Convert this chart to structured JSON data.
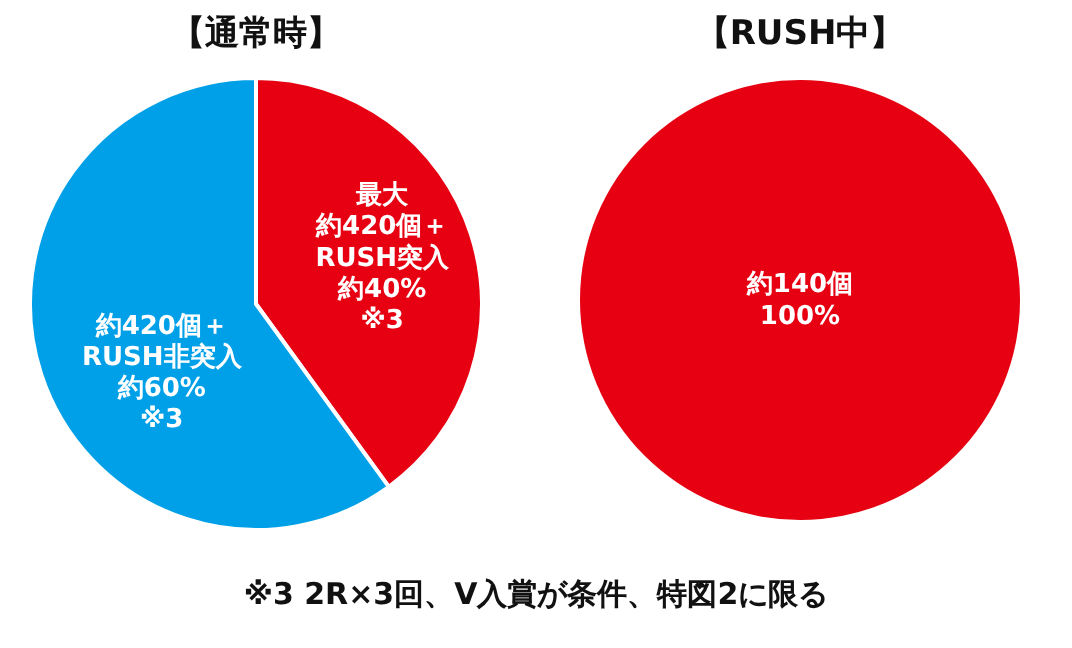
{
  "chart_data": [
    {
      "type": "pie",
      "title": "【通常時】",
      "categories": [
        "約420個＋\nRUSH突入",
        "約420個＋\nRUSH非突入"
      ],
      "values": [
        40,
        60
      ],
      "colors": [
        "#e60012",
        "#00a0e9"
      ],
      "value_labels": [
        "約40%\n※3",
        "約60%\n※3"
      ],
      "annotations": [
        {
          "text": "最大",
          "x": "約420個＋\nRUSH突入"
        },
        "※3 2R×3回、V入賞が条件、特図2に限る"
      ]
    },
    {
      "type": "pie",
      "title": "【RUSH中】",
      "categories": [
        "約140個"
      ],
      "values": [
        100
      ],
      "colors": [
        "#e60012"
      ],
      "value_labels": [
        "100%"
      ]
    }
  ]
}
